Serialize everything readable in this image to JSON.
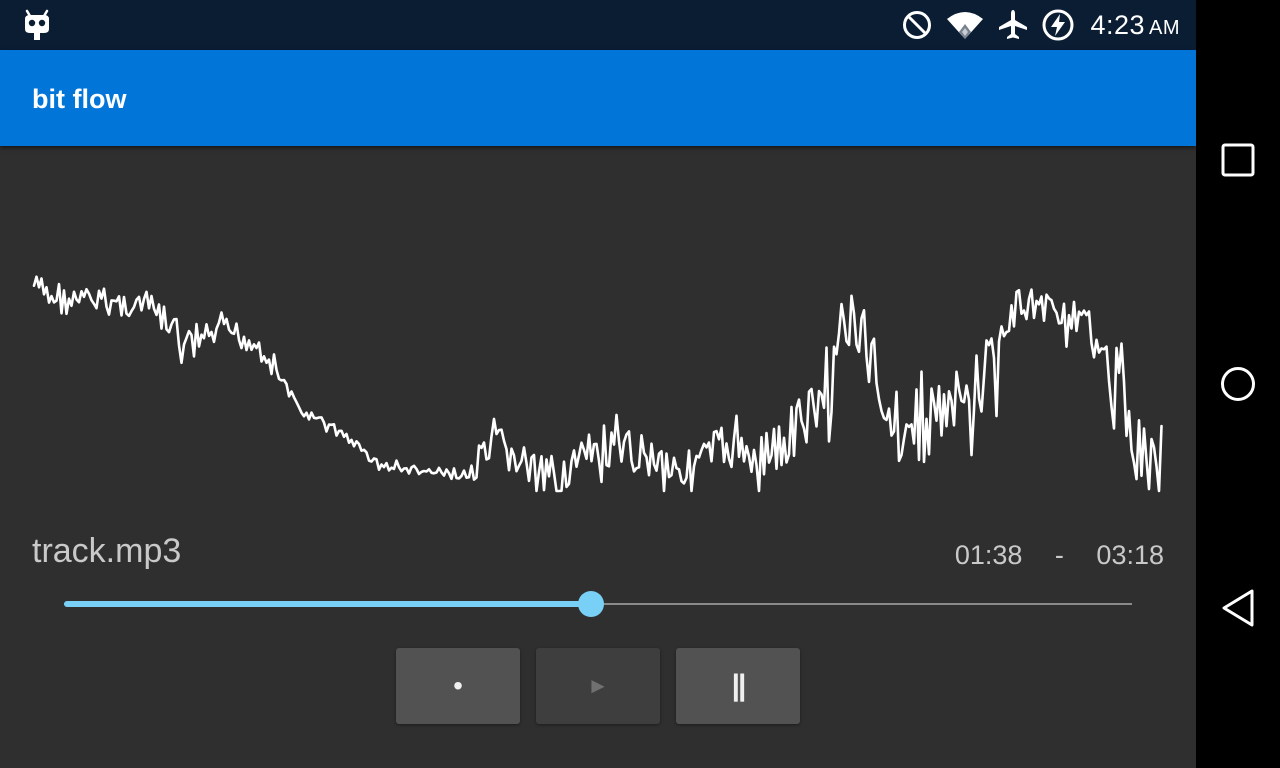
{
  "status_bar": {
    "time": "4:23",
    "ampm": "AM",
    "icons": [
      "cyanogen-bugdroid-icon",
      "do-not-disturb-icon",
      "wifi-icon",
      "airplane-mode-icon",
      "battery-charging-icon"
    ]
  },
  "app": {
    "title": "bit flow",
    "accent_color": "#0275d8",
    "statusbar_color": "#0a1d33",
    "background_color": "#2f2f2f"
  },
  "player": {
    "track_name": "track.mp3",
    "current_time": "01:38",
    "separator": "-",
    "total_time": "03:18",
    "progress": 0.4931,
    "seek_color": "#79d0f6",
    "buttons": {
      "record_label": "•",
      "play_label": "►",
      "pause_label": "||"
    }
  },
  "navigation": [
    "recents-square-icon",
    "home-circle-icon",
    "back-triangle-icon"
  ]
}
